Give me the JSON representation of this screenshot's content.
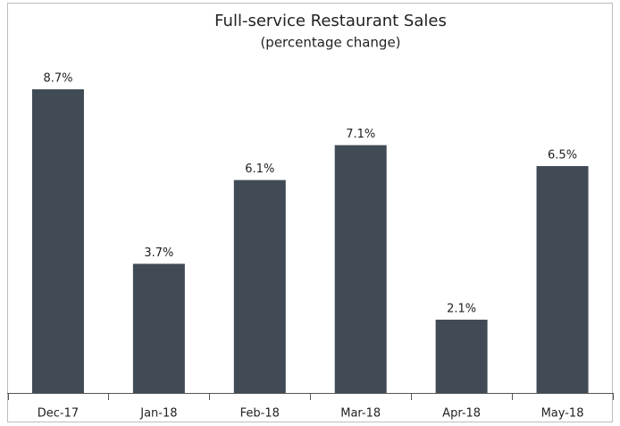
{
  "chart_data": {
    "type": "bar",
    "title": "Full-service Restaurant Sales",
    "subtitle": "(percentage change)",
    "categories": [
      "Dec-17",
      "Jan-18",
      "Feb-18",
      "Mar-18",
      "Apr-18",
      "May-18"
    ],
    "values": [
      8.7,
      3.7,
      6.1,
      7.1,
      2.1,
      6.5
    ],
    "value_labels": [
      "8.7%",
      "3.7%",
      "6.1%",
      "7.1%",
      "2.1%",
      "6.5%"
    ],
    "color": "#414b55"
  }
}
